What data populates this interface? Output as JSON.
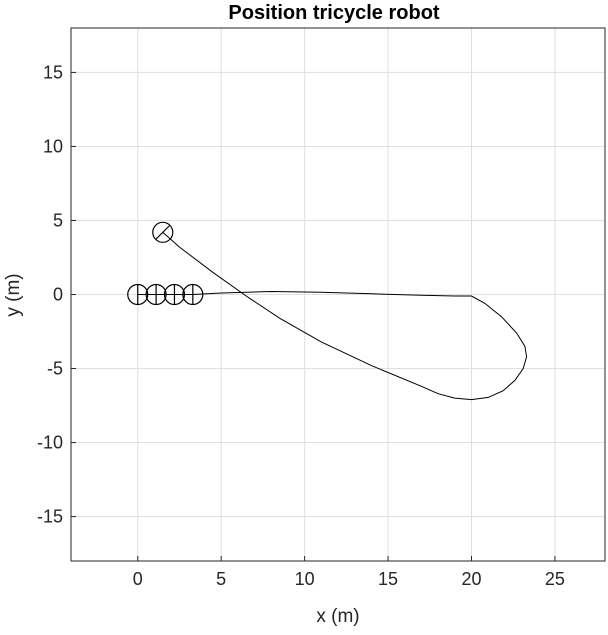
{
  "chart_data": {
    "type": "line",
    "title": "Position tricycle robot",
    "xlabel": "x (m)",
    "ylabel": "y (m)",
    "xlim": [
      -4,
      28
    ],
    "ylim": [
      -18,
      18
    ],
    "xticks": [
      0,
      5,
      10,
      15,
      20,
      25
    ],
    "yticks": [
      -15,
      -10,
      -5,
      0,
      5,
      10,
      15
    ],
    "xtick_labels": [
      "0",
      "5",
      "10",
      "15",
      "20",
      "25"
    ],
    "ytick_labels": [
      "-15",
      "-10",
      "-5",
      "0",
      "5",
      "10",
      "15"
    ],
    "grid": true,
    "series": [
      {
        "x": [
          0,
          1.1,
          2.2,
          3.3,
          5,
          8,
          11,
          14,
          17,
          19,
          20,
          20.8,
          21.8,
          22.7,
          23.2,
          23.3,
          23.1,
          22.6,
          21.9,
          21.0,
          20.0,
          19.0,
          18.0,
          17.0,
          14.0,
          11.0,
          8.5,
          6.5,
          4.5,
          2.5,
          1.5
        ],
        "y": [
          0,
          0,
          0,
          0,
          0.1,
          0.2,
          0.15,
          0.05,
          -0.05,
          -0.1,
          -0.1,
          -0.6,
          -1.5,
          -2.6,
          -3.5,
          -4.2,
          -5.0,
          -5.8,
          -6.5,
          -6.95,
          -7.1,
          -7.0,
          -6.7,
          -6.2,
          -4.8,
          -3.2,
          -1.6,
          -0.1,
          1.5,
          3.2,
          4.2
        ]
      }
    ],
    "robot_markers": [
      {
        "x": 0,
        "y": 0,
        "style": "vertical-line"
      },
      {
        "x": 1.1,
        "y": 0,
        "style": "vertical-line"
      },
      {
        "x": 2.2,
        "y": 0,
        "style": "vertical-line"
      },
      {
        "x": 3.3,
        "y": 0,
        "style": "vertical-line"
      },
      {
        "x": 1.5,
        "y": 4.2,
        "style": "diagonal-line"
      }
    ]
  }
}
